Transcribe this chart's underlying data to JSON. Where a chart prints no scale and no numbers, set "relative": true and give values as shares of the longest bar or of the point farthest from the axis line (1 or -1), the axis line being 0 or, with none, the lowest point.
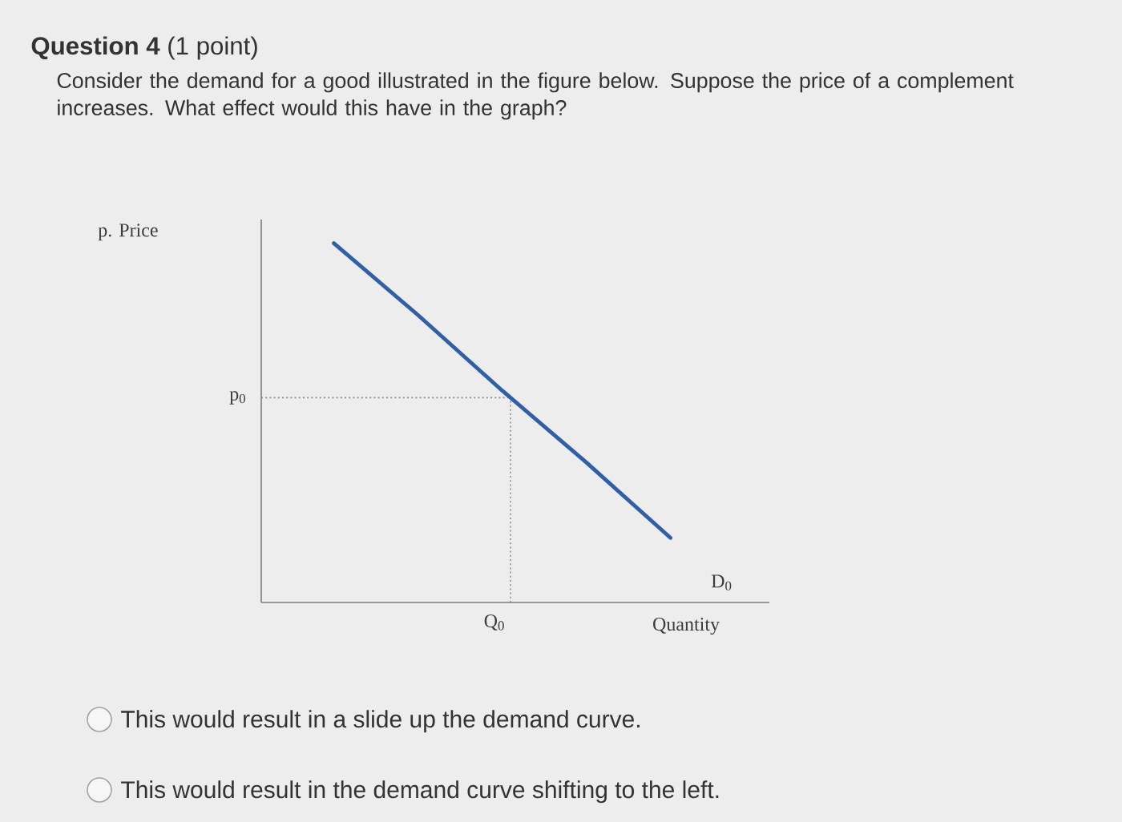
{
  "chart_data": {
    "type": "line",
    "title": "**Question 4** (1 point)",
    "subtitle": "Consider the demand for a good illustrated in the figure below. Suppose the price of a complement increases. What effect would this have in the graph?",
    "xlabel": "Quantity",
    "categories": [
      null,
      null,
      null,
      null,
      null
    ],
    "relative": true,
    "series": [
      {
        "name": "D$_{0}$",
        "color": "#2f5fa8",
        "values": [
          1,
          0.8,
          0.59,
          0.39,
          0.18
        ]
      }
    ],
    "ref_lines": [
      {
        "axis": "y",
        "value": 0.57,
        "label": "p$_{0}$",
        "color": "#8a8a8a",
        "line_style": "dotted"
      },
      {
        "axis": "x",
        "value": "Q$_{0}$",
        "color": "#8a8a8a",
        "line_style": "dotted"
      }
    ],
    "annotations": [
      "p. Price",
      "This would result in a slide up the demand curve.",
      "This would result in the demand curve shifting to the left."
    ]
  }
}
